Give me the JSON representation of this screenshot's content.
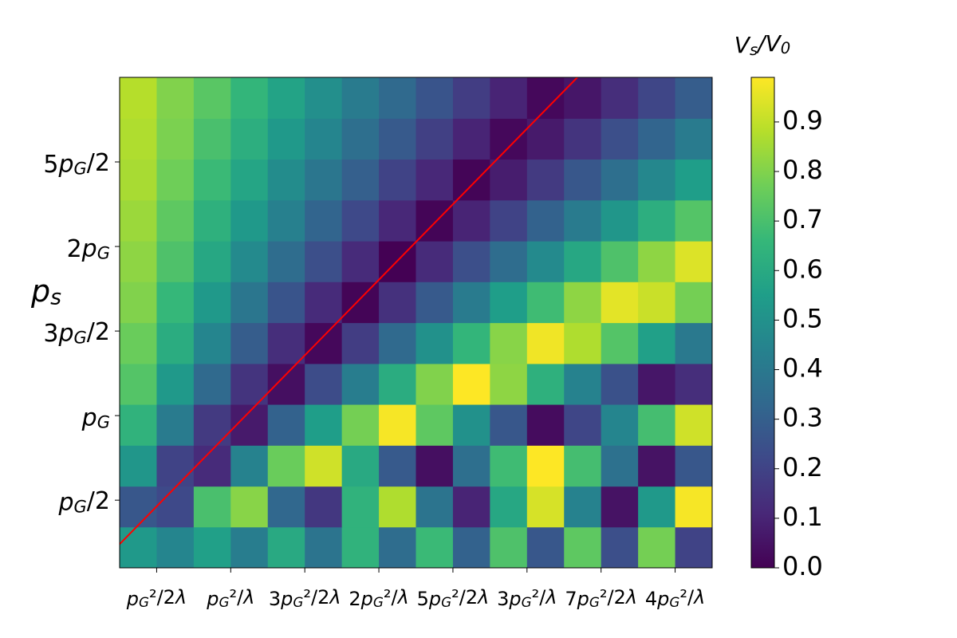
{
  "chart_data": {
    "type": "heatmap",
    "ylabel": "ps",
    "colorbar_label": "Vs/V0",
    "cmap": "viridis",
    "xlim": [
      0.25,
      4.25
    ],
    "ylim": [
      0.1,
      3.0
    ],
    "clim": [
      0,
      0.99
    ],
    "xticks": [
      {
        "value": 0.5,
        "label": "pG²/2λ"
      },
      {
        "value": 1,
        "label": "pG²/λ"
      },
      {
        "value": 1.5,
        "label": "3pG²/2λ"
      },
      {
        "value": 2,
        "label": "2pG²/λ"
      },
      {
        "value": 2.5,
        "label": "5pG²/2λ"
      },
      {
        "value": 3,
        "label": "3pG²/λ"
      },
      {
        "value": 3.5,
        "label": "7pG²/2λ"
      },
      {
        "value": 4,
        "label": "4pG²/λ"
      }
    ],
    "yticks": [
      {
        "value": 0.5,
        "label": "pG/2"
      },
      {
        "value": 1,
        "label": "pG"
      },
      {
        "value": 1.5,
        "label": "3pG/2"
      },
      {
        "value": 2,
        "label": "2pG"
      },
      {
        "value": 2.5,
        "label": "5pG/2"
      }
    ],
    "cticks": [
      {
        "value": 0,
        "label": "0.0"
      },
      0.1,
      0.2,
      0.3,
      0.4,
      0.5,
      0.6,
      0.7,
      0.8,
      0.9
    ],
    "x": [
      0.375,
      0.625,
      0.875,
      1.125,
      1.375,
      1.625,
      1.875,
      2.125,
      2.375,
      2.625,
      2.875,
      3.125,
      3.375,
      3.625,
      3.875,
      4.125
    ],
    "y": [
      0.221,
      0.463,
      0.704,
      0.946,
      1.188,
      1.429,
      1.671,
      1.913,
      2.154,
      2.396,
      2.638,
      2.879
    ],
    "z": [
      [
        0.53,
        0.45,
        0.56,
        0.42,
        0.6,
        0.38,
        0.64,
        0.35,
        0.67,
        0.31,
        0.71,
        0.27,
        0.74,
        0.24,
        0.78,
        0.2
      ],
      [
        0.27,
        0.22,
        0.7,
        0.81,
        0.33,
        0.16,
        0.64,
        0.87,
        0.38,
        0.1,
        0.59,
        0.93,
        0.44,
        0.05,
        0.53,
        0.98
      ],
      [
        0.52,
        0.2,
        0.12,
        0.44,
        0.76,
        0.92,
        0.6,
        0.28,
        0.04,
        0.36,
        0.68,
        1.0,
        0.69,
        0.37,
        0.05,
        0.27
      ],
      [
        0.64,
        0.41,
        0.17,
        0.07,
        0.31,
        0.55,
        0.78,
        0.98,
        0.74,
        0.5,
        0.27,
        0.03,
        0.21,
        0.45,
        0.69,
        0.92
      ],
      [
        0.72,
        0.53,
        0.34,
        0.15,
        0.04,
        0.23,
        0.42,
        0.61,
        0.8,
        0.99,
        0.82,
        0.63,
        0.44,
        0.25,
        0.06,
        0.13
      ],
      [
        0.76,
        0.61,
        0.45,
        0.29,
        0.13,
        0.02,
        0.18,
        0.34,
        0.5,
        0.65,
        0.81,
        0.97,
        0.87,
        0.72,
        0.56,
        0.4
      ],
      [
        0.8,
        0.66,
        0.53,
        0.39,
        0.26,
        0.12,
        0.01,
        0.14,
        0.28,
        0.41,
        0.55,
        0.68,
        0.82,
        0.95,
        0.91,
        0.78
      ],
      [
        0.82,
        0.71,
        0.59,
        0.47,
        0.35,
        0.24,
        0.12,
        0.0,
        0.12,
        0.24,
        0.35,
        0.47,
        0.59,
        0.71,
        0.82,
        0.94
      ],
      [
        0.84,
        0.74,
        0.63,
        0.53,
        0.43,
        0.32,
        0.22,
        0.11,
        0.01,
        0.1,
        0.2,
        0.31,
        0.41,
        0.52,
        0.62,
        0.72
      ],
      [
        0.86,
        0.77,
        0.67,
        0.58,
        0.48,
        0.39,
        0.3,
        0.2,
        0.11,
        0.01,
        0.08,
        0.17,
        0.27,
        0.36,
        0.46,
        0.55
      ],
      [
        0.87,
        0.79,
        0.7,
        0.62,
        0.53,
        0.45,
        0.36,
        0.28,
        0.19,
        0.1,
        0.02,
        0.07,
        0.15,
        0.24,
        0.32,
        0.41
      ],
      [
        0.88,
        0.8,
        0.73,
        0.65,
        0.57,
        0.49,
        0.41,
        0.34,
        0.26,
        0.18,
        0.1,
        0.02,
        0.06,
        0.13,
        0.21,
        0.29
      ]
    ],
    "line": {
      "x": [
        0.25,
        3.34
      ],
      "y": [
        0.24,
        3.0
      ],
      "color": "#ff0000"
    }
  }
}
